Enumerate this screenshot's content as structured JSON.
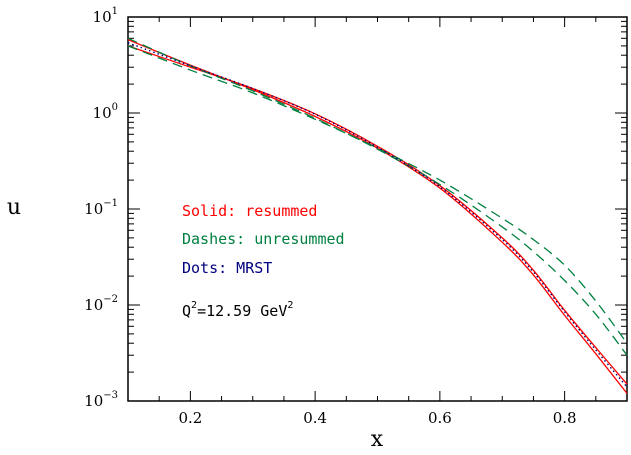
{
  "chart_data": {
    "type": "line",
    "xlabel": "x",
    "ylabel": "u",
    "xlim": [
      0.1,
      0.9
    ],
    "ylim": [
      0.001,
      10
    ],
    "yscale": "log",
    "x_ticks": [
      0.2,
      0.4,
      0.6,
      0.8
    ],
    "x_tick_labels": [
      "0.2",
      "0.4",
      "0.6",
      "0.8"
    ],
    "y_ticks": [
      {
        "value": 10,
        "base": "10",
        "exp": "1"
      },
      {
        "value": 1,
        "base": "10",
        "exp": "0"
      },
      {
        "value": 0.1,
        "base": "10",
        "exp": "−1"
      },
      {
        "value": 0.01,
        "base": "10",
        "exp": "−2"
      },
      {
        "value": 0.001,
        "base": "10",
        "exp": "−3"
      }
    ],
    "annotations": {
      "solid": "Solid: resummed",
      "dashes": "Dashes: unresummed",
      "dots": "Dots: MRST",
      "q2_prefix": "Q",
      "q2_sup": "2",
      "q2_mid": "=12.59 GeV",
      "q2_sup2": "2"
    },
    "colors": {
      "resummed": "#ff0000",
      "unresummed": "#008040",
      "mrst": "#000080"
    },
    "series": [
      {
        "style": "solid",
        "color": "#ff0000",
        "x": [
          0.1,
          0.2,
          0.3,
          0.4,
          0.5,
          0.6,
          0.7,
          0.75,
          0.8,
          0.85,
          0.9
        ],
        "y": [
          5.8,
          3.15,
          1.75,
          0.92,
          0.43,
          0.165,
          0.045,
          0.0205,
          0.0078,
          0.0031,
          0.0012
        ]
      },
      {
        "style": "solid",
        "color": "#ff0000",
        "x": [
          0.1,
          0.2,
          0.3,
          0.4,
          0.5,
          0.6,
          0.7,
          0.75,
          0.8,
          0.85,
          0.9
        ],
        "y": [
          5.0,
          3.0,
          1.8,
          0.98,
          0.45,
          0.175,
          0.05,
          0.023,
          0.0088,
          0.0036,
          0.0015
        ]
      },
      {
        "style": "dashed",
        "color": "#008040",
        "x": [
          0.1,
          0.2,
          0.3,
          0.4,
          0.5,
          0.6,
          0.7,
          0.75,
          0.8,
          0.85,
          0.9
        ],
        "y": [
          6.0,
          3.1,
          1.7,
          0.88,
          0.42,
          0.18,
          0.065,
          0.036,
          0.018,
          0.008,
          0.003
        ]
      },
      {
        "style": "dashed",
        "color": "#008040",
        "x": [
          0.1,
          0.2,
          0.3,
          0.4,
          0.5,
          0.6,
          0.7,
          0.75,
          0.8,
          0.85,
          0.9
        ],
        "y": [
          5.0,
          2.8,
          1.62,
          0.86,
          0.43,
          0.2,
          0.08,
          0.048,
          0.026,
          0.011,
          0.004
        ]
      },
      {
        "style": "dotted",
        "color": "#000080",
        "x": [
          0.1,
          0.2,
          0.3,
          0.4,
          0.5,
          0.6,
          0.7,
          0.75,
          0.8,
          0.85,
          0.9
        ],
        "y": [
          5.4,
          3.1,
          1.8,
          0.97,
          0.44,
          0.17,
          0.048,
          0.022,
          0.0085,
          0.0034,
          0.0014
        ]
      }
    ]
  }
}
